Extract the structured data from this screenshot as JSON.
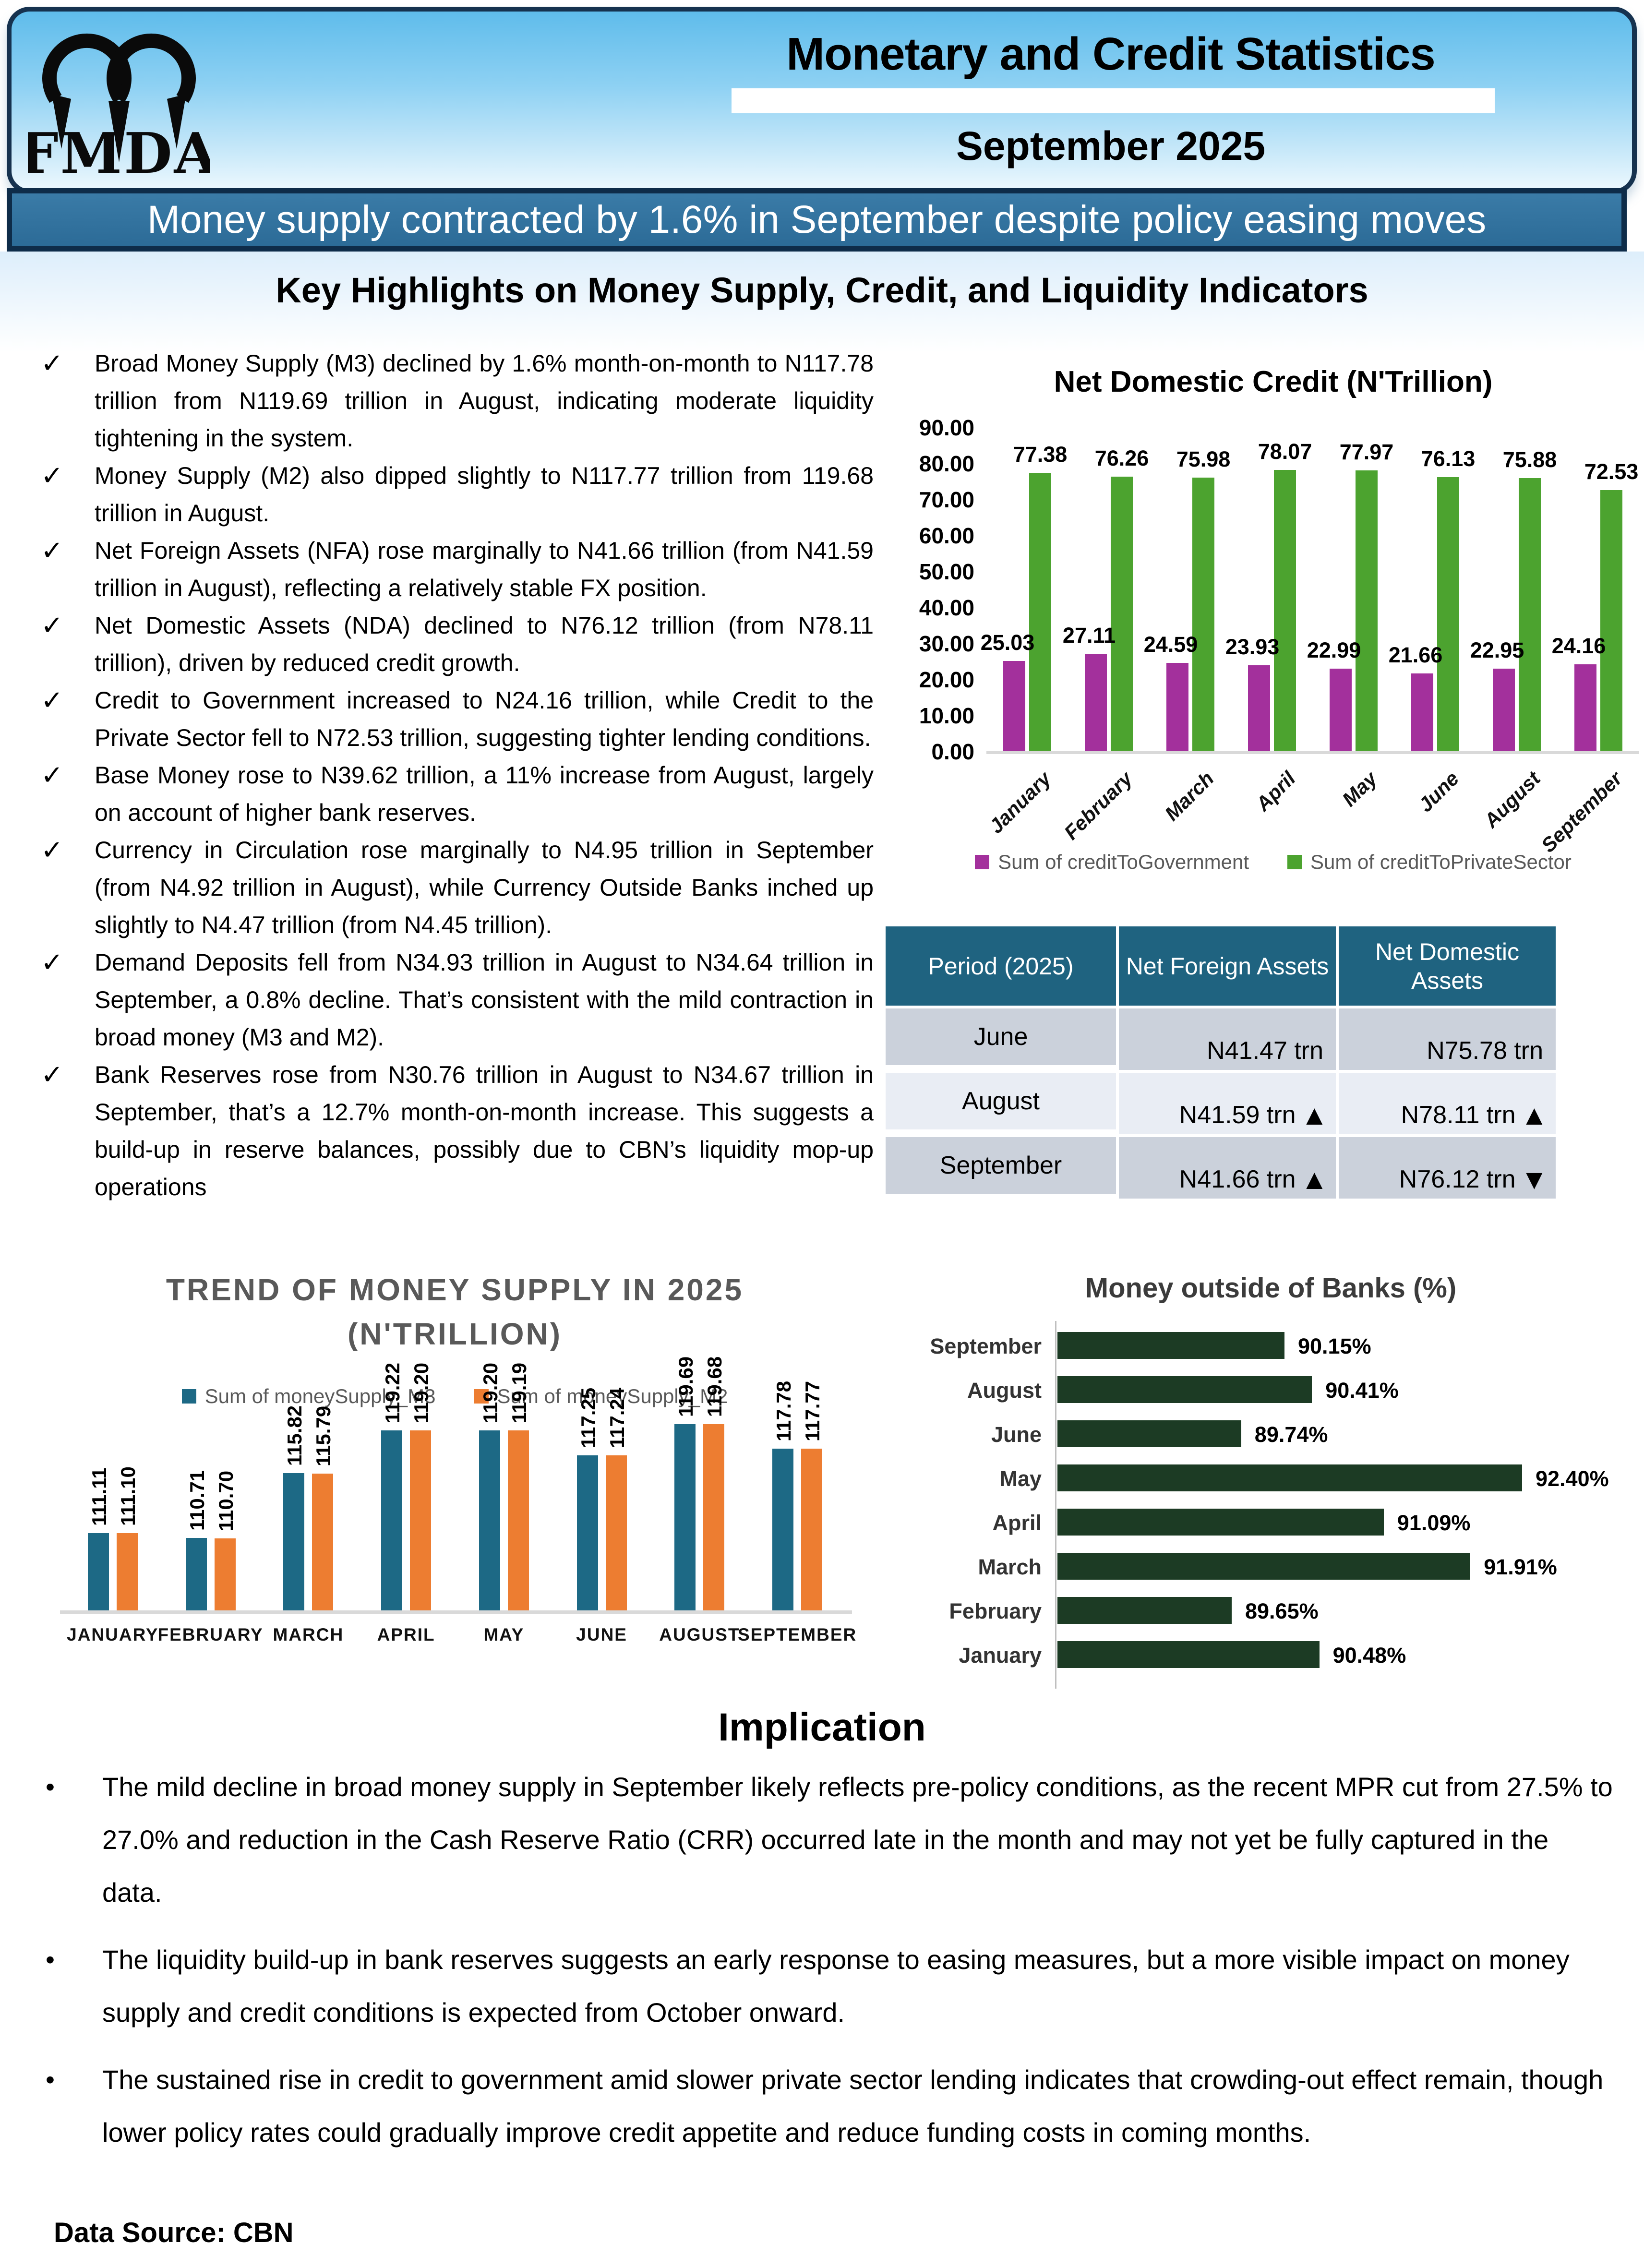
{
  "header": {
    "logo_text": "FMDA",
    "title": "Monetary and Credit Statistics",
    "subtitle": "September 2025"
  },
  "banner": {
    "headline": "Money supply contracted by 1.6% in September despite policy easing moves"
  },
  "highlights": {
    "title": "Key Highlights on Money Supply, Credit, and Liquidity Indicators",
    "items": [
      "Broad Money Supply (M3) declined by 1.6% month-on-month to N117.78 trillion from N119.69 trillion in August, indicating moderate liquidity tightening in the system.",
      "Money Supply (M2) also dipped slightly to N117.77 trillion from 119.68 trillion in August.",
      "Net Foreign Assets (NFA) rose marginally to N41.66 trillion (from N41.59 trillion in August), reflecting a relatively stable FX position.",
      "Net Domestic Assets (NDA) declined to N76.12 trillion (from N78.11 trillion), driven by reduced credit growth.",
      "Credit to Government increased to N24.16 trillion, while Credit to the Private Sector fell to N72.53 trillion, suggesting tighter lending conditions.",
      "Base Money rose to N39.62 trillion, a 11% increase from August, largely on account of higher bank reserves.",
      "Currency in Circulation rose marginally to N4.95 trillion in September (from N4.92 trillion in August), while Currency Outside Banks inched up slightly to N4.47 trillion (from N4.45 trillion).",
      "Demand Deposits fell from N34.93 trillion in August to N34.64 trillion in September, a 0.8% decline. That’s consistent with the mild contraction in broad money (M3 and M2).",
      "Bank Reserves rose from N30.76 trillion in August to N34.67 trillion in September, that’s a 12.7% month-on-month increase. This suggests a build-up in reserve balances, possibly due to CBN’s liquidity mop-up operations"
    ]
  },
  "table": {
    "headers": [
      "Period (2025)",
      "Net Foreign Assets",
      "Net Domestic Assets"
    ],
    "rows": [
      {
        "period": "June",
        "nfa": "N41.47 trn",
        "nfa_arrow": "",
        "nda": "N75.78 trn",
        "nda_arrow": ""
      },
      {
        "period": "August",
        "nfa": "N41.59 trn",
        "nfa_arrow": "▲",
        "nda": "N78.11 trn",
        "nda_arrow": "▲"
      },
      {
        "period": "September",
        "nfa": "N41.66 trn",
        "nfa_arrow": "▲",
        "nda": "N76.12 trn",
        "nda_arrow": "▼"
      }
    ]
  },
  "chart_data": [
    {
      "id": "net_domestic_credit",
      "type": "bar",
      "title": "Net Domestic Credit (N'Trillion)",
      "categories": [
        "January",
        "February",
        "March",
        "April",
        "May",
        "June",
        "August",
        "September"
      ],
      "series": [
        {
          "name": "Sum of creditToGovernment",
          "color": "#A3309C",
          "values": [
            25.03,
            27.11,
            24.59,
            23.93,
            22.99,
            21.66,
            22.95,
            24.16
          ]
        },
        {
          "name": "Sum of creditToPrivateSector",
          "color": "#4CA32F",
          "values": [
            77.38,
            76.26,
            75.98,
            78.07,
            77.97,
            76.13,
            75.88,
            72.53
          ]
        }
      ],
      "ylim": [
        0,
        90
      ],
      "yticks": [
        "90.00",
        "80.00",
        "70.00",
        "60.00",
        "50.00",
        "40.00",
        "30.00",
        "20.00",
        "10.00",
        "0.00"
      ],
      "grid": false,
      "legend_position": "bottom"
    },
    {
      "id": "money_outside_banks",
      "type": "bar-horizontal",
      "title": "Money outside of Banks (%)",
      "categories": [
        "September",
        "August",
        "June",
        "May",
        "April",
        "March",
        "February",
        "January"
      ],
      "values": [
        90.15,
        90.41,
        89.74,
        92.4,
        91.09,
        91.91,
        89.65,
        90.48
      ],
      "labels": [
        "90.15%",
        "90.41%",
        "89.74%",
        "92.40%",
        "91.09%",
        "91.91%",
        "89.65%",
        "90.48%"
      ],
      "color": "#1C3B24",
      "xlim": [
        88,
        93
      ],
      "grid": false,
      "legend_position": "none"
    },
    {
      "id": "money_supply_trend",
      "type": "bar",
      "title": "TREND OF MONEY SUPPLY IN 2025 (N'TRILLION)",
      "title_lines": [
        "TREND OF MONEY SUPPLY IN 2025",
        "(N'TRILLION)"
      ],
      "categories": [
        "JANUARY",
        "FEBRUARY",
        "MARCH",
        "APRIL",
        "MAY",
        "JUNE",
        "AUGUST",
        "SEPTEMBER"
      ],
      "series": [
        {
          "name": "Sum of moneySupply_M3",
          "color": "#1D6985",
          "values": [
            111.11,
            110.71,
            115.82,
            119.22,
            119.2,
            117.25,
            119.69,
            117.78
          ]
        },
        {
          "name": "Sum of moneySupply_M2",
          "color": "#ED7D31",
          "values": [
            111.1,
            110.7,
            115.79,
            119.2,
            119.19,
            117.24,
            119.68,
            117.77
          ]
        }
      ],
      "ylim": [
        105,
        120
      ],
      "grid": false,
      "legend_position": "top"
    }
  ],
  "implication": {
    "title": "Implication",
    "items": [
      "The mild decline in broad money supply in September likely reflects pre-policy conditions, as the recent MPR cut from 27.5% to 27.0% and reduction in the Cash Reserve Ratio (CRR) occurred late in the month and may not yet be fully captured in the data.",
      "The liquidity build-up in bank reserves suggests an early response to easing measures, but a more visible impact on money supply and credit conditions is expected from October onward.",
      "The sustained rise in credit to government amid slower private sector lending indicates that crowding-out effect remain, though lower policy rates could gradually improve credit appetite and reduce funding costs in coming months."
    ]
  },
  "footer": {
    "source": "Data Source: CBN"
  },
  "colors": {
    "header_blue": "#8ED1F3",
    "navy_border": "#16324F",
    "banner_fill": "#2C6B97",
    "table_header": "#1F6380",
    "row_gray": "#CBD1DB",
    "row_light": "#E9EDF4",
    "credit_gov_purple": "#A3309C",
    "credit_private_green": "#4CA32F",
    "mob_dark_green": "#1C3B24",
    "m3_blue": "#1D6985",
    "m2_orange": "#ED7D31",
    "muted_gray": "#595959"
  }
}
